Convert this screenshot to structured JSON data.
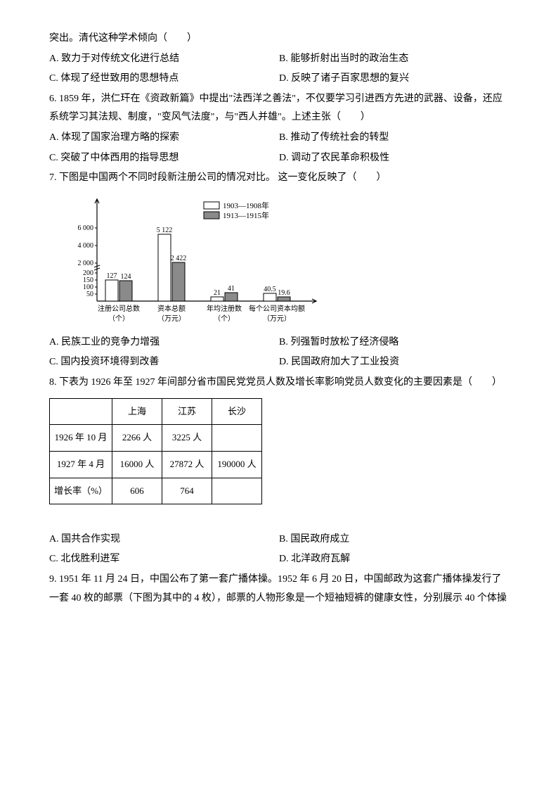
{
  "q5_tail": "突出。清代这种学术倾向（　　）",
  "q5_opts": {
    "A": "A. 致力于对传统文化进行总结",
    "B": "B. 能够折射出当时的政治生态",
    "C": "C. 体现了经世致用的思想特点",
    "D": "D. 反映了诸子百家思想的复兴"
  },
  "q6_text": "6. 1859 年，洪仁玕在《资政新篇》中提出\"法西洋之善法\"，不仅要学习引进西方先进的武器、设备，还应系统学习其法规、制度，\"变风气法度\"，与\"西人并雄\"。上述主张（　　）",
  "q6_opts": {
    "A": "A. 体现了国家治理方略的探索",
    "B": "B. 推动了传统社会的转型",
    "C": "C. 突破了中体西用的指导思想",
    "D": "D. 调动了农民革命积极性"
  },
  "q7_text": "7. 下图是中国两个不同时段新注册公司的情况对比。 这一变化反映了（　　）",
  "q7_opts": {
    "A": "A. 民族工业的竞争力增强",
    "B": "B. 列强暂时放松了经济侵略",
    "C": "C. 国内投资环境得到改善",
    "D": "D. 民国政府加大了工业投资"
  },
  "q8_text": "8. 下表为 1926 年至 1927 年间部分省市国民党党员人数及增长率影响党员人数变化的主要因素是（　　）",
  "q8_opts": {
    "A": "A. 国共合作实现",
    "B": "B. 国民政府成立",
    "C": "C. 北伐胜利进军",
    "D": "D. 北洋政府瓦解"
  },
  "q9_text": "9. 1951 年 11 月 24 日，中国公布了第一套广播体操。1952 年 6 月 20 日，中国邮政为这套广播体操发行了一套 40 枚的邮票（下图为其中的 4 枚），邮票的人物形象是一个短袖短裤的健康女性，分别展示 40 个体操",
  "table": {
    "headers": [
      "",
      "上海",
      "江苏",
      "长沙"
    ],
    "rows": [
      [
        "1926 年 10 月",
        "2266 人",
        "3225 人",
        ""
      ],
      [
        "1927 年 4 月",
        "16000 人",
        "27872 人",
        "190000 人"
      ],
      [
        "增长率（%）",
        "606",
        "764",
        ""
      ]
    ]
  },
  "chart": {
    "type": "bar",
    "legend": [
      {
        "label": "1903—1908年",
        "fill": "#ffffff",
        "stroke": "#000000"
      },
      {
        "label": "1913—1915年",
        "fill": "#8a8a8a",
        "stroke": "#000000"
      }
    ],
    "groups": [
      {
        "cat": "注册公司总数（个）",
        "v1": 127,
        "v2": 124,
        "label1": "127",
        "label2": "124",
        "h1": 30,
        "h2": 29
      },
      {
        "cat": "资本总额（万元）",
        "v1": 5122,
        "v2": 2422,
        "label1": "5 122",
        "label2": "2 422",
        "h1": 95,
        "h2": 55
      },
      {
        "cat": "年均注册数（个）",
        "v1": 21,
        "v2": 41,
        "label1": "21",
        "label2": "41",
        "h1": 6,
        "h2": 12
      },
      {
        "cat": "每个公司资本均额（万元）",
        "v1": 40.5,
        "v2": 19.6,
        "label1": "40.5",
        "label2": "19.6",
        "h1": 11,
        "h2": 6
      }
    ],
    "yticks_low": [
      "50",
      "100",
      "150",
      "200"
    ],
    "yticks_high": [
      "2 000",
      "4 000",
      "6 000"
    ],
    "colors": {
      "bg": "#ffffff",
      "axis": "#000000",
      "bar1_fill": "#ffffff",
      "bar2_fill": "#8a8a8a",
      "text": "#000000"
    },
    "font": {
      "size_tick": 10,
      "size_label": 10,
      "size_legend": 11
    }
  }
}
